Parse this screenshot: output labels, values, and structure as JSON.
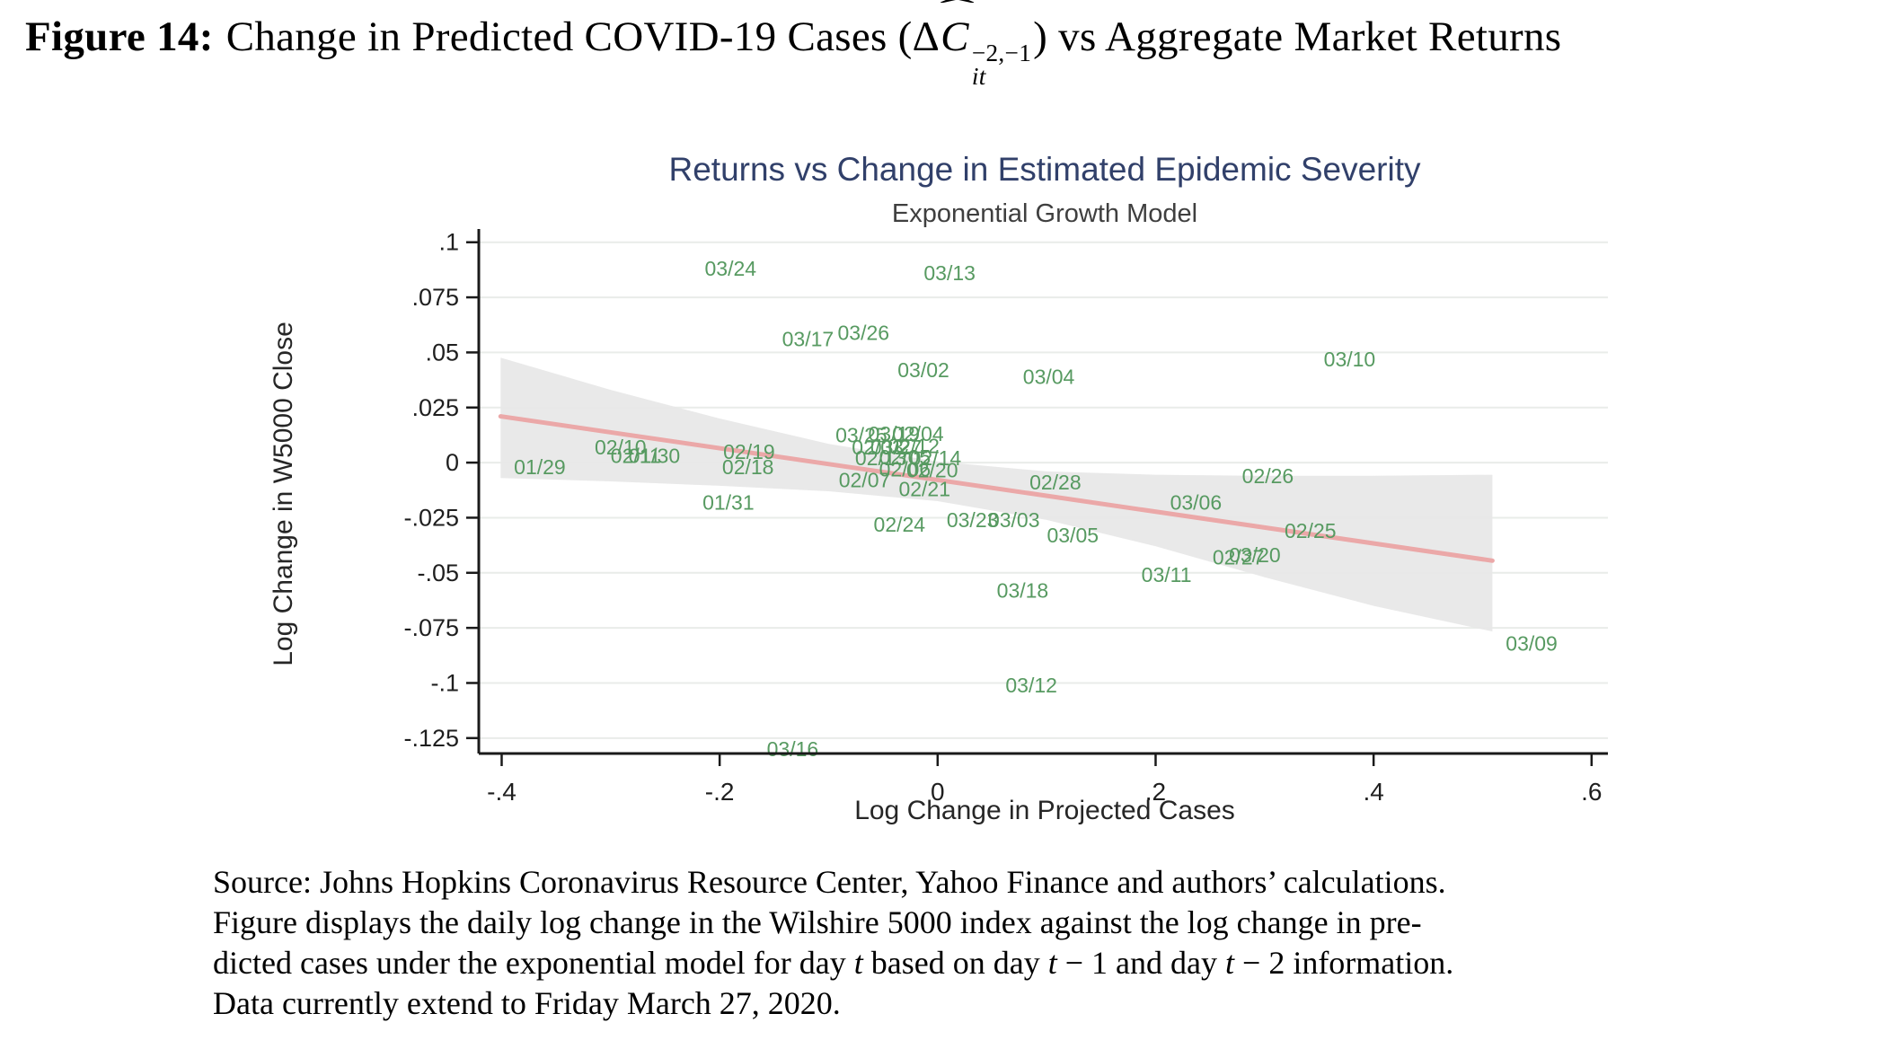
{
  "figure_title": {
    "bold": "Figure 14:",
    "pre": "Change in Predicted COVID-19 Cases (Δ",
    "var": "C",
    "hat": "ˆ",
    "sup": "−2,−1",
    "sub": "it",
    "post": ") vs Aggregate Market Returns"
  },
  "chart_data": {
    "type": "scatter",
    "title": "Returns vs Change in Estimated Epidemic Severity",
    "subtitle": "Exponential Growth Model",
    "xlabel": "Log Change in Projected Cases",
    "ylabel": "Log Change in W5000 Close",
    "xlim": [
      -0.421,
      0.615
    ],
    "ylim": [
      -0.132,
      0.106
    ],
    "xticks": [
      -0.4,
      -0.2,
      0,
      0.2,
      0.4,
      0.6
    ],
    "xtick_labels": [
      "-.4",
      "-.2",
      "0",
      ".2",
      ".4",
      ".6"
    ],
    "yticks": [
      0.1,
      0.075,
      0.05,
      0.025,
      0,
      -0.025,
      -0.05,
      -0.075,
      -0.1,
      -0.125
    ],
    "ytick_labels": [
      ".1",
      ".075",
      ".05",
      ".025",
      "0",
      "-.025",
      "-.05",
      "-.075",
      "-.1",
      "-.125"
    ],
    "grid": true,
    "legend": "none",
    "colors": {
      "grid": "#e9ece9",
      "band": "#e7e7e7",
      "trend": "#eba8a8",
      "points": "#579a61",
      "axis": "#1a1a1a",
      "tick_label": "#1f1f1f",
      "title": "#31406a",
      "subtitle": "#3f3f3f"
    },
    "points": [
      {
        "label": "01/29",
        "x": -0.365,
        "y": -0.002
      },
      {
        "label": "01/30",
        "x": -0.26,
        "y": 0.003
      },
      {
        "label": "01/31",
        "x": -0.192,
        "y": -0.018
      },
      {
        "label": "02/03",
        "x": -0.055,
        "y": 0.007
      },
      {
        "label": "02/04",
        "x": -0.018,
        "y": 0.013
      },
      {
        "label": "02/05",
        "x": -0.03,
        "y": 0.0025
      },
      {
        "label": "02/06",
        "x": -0.03,
        "y": -0.003
      },
      {
        "label": "02/07",
        "x": -0.067,
        "y": -0.008
      },
      {
        "label": "02/10",
        "x": -0.291,
        "y": 0.007
      },
      {
        "label": "02/11",
        "x": -0.277,
        "y": 0.003
      },
      {
        "label": "02/12",
        "x": -0.022,
        "y": 0.0075
      },
      {
        "label": "02/13",
        "x": -0.052,
        "y": 0.002
      },
      {
        "label": "02/14",
        "x": -0.002,
        "y": 0.002
      },
      {
        "label": "02/18",
        "x": -0.174,
        "y": -0.002
      },
      {
        "label": "02/19",
        "x": -0.173,
        "y": 0.005
      },
      {
        "label": "02/20",
        "x": -0.005,
        "y": -0.0035
      },
      {
        "label": "02/21",
        "x": -0.012,
        "y": -0.012
      },
      {
        "label": "02/24",
        "x": -0.035,
        "y": -0.028
      },
      {
        "label": "02/25",
        "x": 0.342,
        "y": -0.031
      },
      {
        "label": "02/26",
        "x": 0.303,
        "y": -0.006
      },
      {
        "label": "02/27",
        "x": 0.276,
        "y": -0.043
      },
      {
        "label": "02/28",
        "x": 0.108,
        "y": -0.009
      },
      {
        "label": "03/02",
        "x": -0.013,
        "y": 0.042
      },
      {
        "label": "03/03",
        "x": 0.07,
        "y": -0.026
      },
      {
        "label": "03/04",
        "x": 0.102,
        "y": 0.039
      },
      {
        "label": "03/05",
        "x": 0.124,
        "y": -0.033
      },
      {
        "label": "03/06",
        "x": 0.237,
        "y": -0.018
      },
      {
        "label": "03/09",
        "x": 0.545,
        "y": -0.082
      },
      {
        "label": "03/10",
        "x": 0.378,
        "y": 0.047
      },
      {
        "label": "03/11",
        "x": 0.21,
        "y": -0.051
      },
      {
        "label": "03/12",
        "x": 0.086,
        "y": -0.101
      },
      {
        "label": "03/13",
        "x": 0.011,
        "y": 0.086
      },
      {
        "label": "03/16",
        "x": -0.133,
        "y": -0.13
      },
      {
        "label": "03/17",
        "x": -0.119,
        "y": 0.056
      },
      {
        "label": "03/18",
        "x": 0.078,
        "y": -0.058
      },
      {
        "label": "03/19",
        "x": -0.04,
        "y": 0.013
      },
      {
        "label": "03/20",
        "x": 0.291,
        "y": -0.042
      },
      {
        "label": "03/23",
        "x": 0.032,
        "y": -0.026
      },
      {
        "label": "03/24",
        "x": -0.19,
        "y": 0.088
      },
      {
        "label": "03/25",
        "x": -0.07,
        "y": 0.0125
      },
      {
        "label": "03/26",
        "x": -0.068,
        "y": 0.059
      },
      {
        "label": "03/27",
        "x": -0.038,
        "y": 0.007
      }
    ],
    "trend_line": {
      "x": [
        -0.401,
        0.509
      ],
      "y": [
        0.021,
        -0.0445
      ]
    },
    "confidence_band": {
      "upper": [
        [
          -0.401,
          0.0476
        ],
        [
          -0.3,
          0.033
        ],
        [
          -0.2,
          0.02
        ],
        [
          -0.1,
          0.0085
        ],
        [
          0.0,
          0.0005
        ],
        [
          0.1,
          -0.004
        ],
        [
          0.2,
          -0.0055
        ],
        [
          0.3,
          -0.006
        ],
        [
          0.4,
          -0.006
        ],
        [
          0.509,
          -0.0055
        ]
      ],
      "lower": [
        [
          -0.401,
          -0.007
        ],
        [
          -0.3,
          -0.0085
        ],
        [
          -0.2,
          -0.0105
        ],
        [
          -0.1,
          -0.013
        ],
        [
          0.0,
          -0.0175
        ],
        [
          0.1,
          -0.026
        ],
        [
          0.2,
          -0.038
        ],
        [
          0.3,
          -0.052
        ],
        [
          0.4,
          -0.065
        ],
        [
          0.509,
          -0.0766
        ]
      ]
    }
  },
  "source_note": {
    "lines": [
      [
        {
          "t": "Source: Johns Hopkins Coronavirus Resource Center, Yahoo Finance and authors’ calculations."
        }
      ],
      [
        {
          "t": "Figure displays the daily log change in the Wilshire 5000 index against the log change in pre-"
        }
      ],
      [
        {
          "t": "dicted cases under the exponential model for day "
        },
        {
          "t": "t",
          "i": true
        },
        {
          "t": " based on day "
        },
        {
          "t": "t",
          "i": true
        },
        {
          "t": " − 1 and day "
        },
        {
          "t": "t",
          "i": true
        },
        {
          "t": " − 2 information."
        }
      ],
      [
        {
          "t": "Data currently extend to Friday March 27, 2020."
        }
      ]
    ]
  }
}
